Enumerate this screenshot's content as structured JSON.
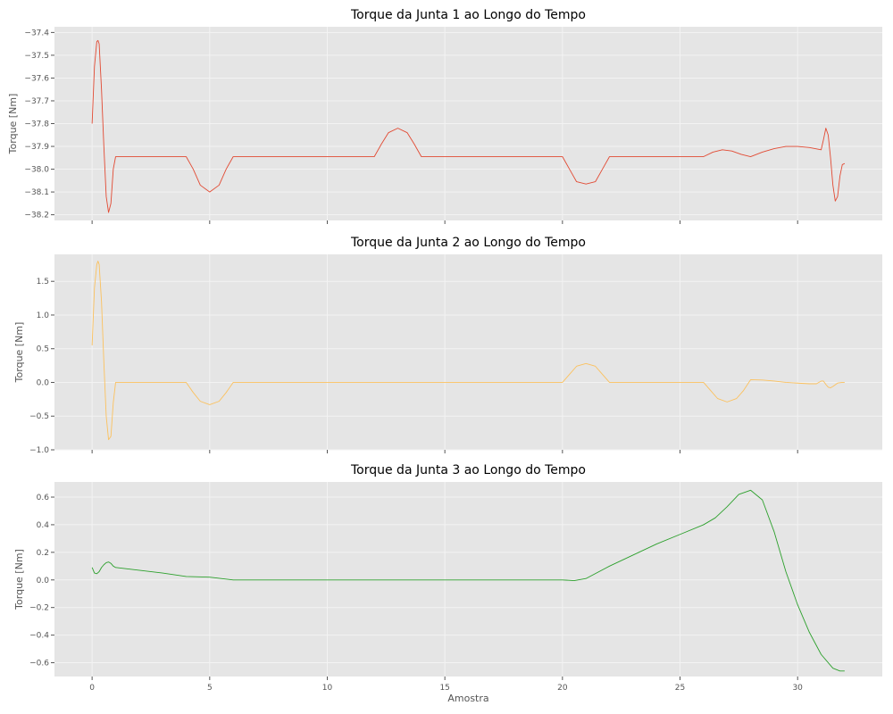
{
  "figure": {
    "xlabel": "Amostra"
  },
  "chart_data": [
    {
      "type": "line",
      "title": "Torque da Junta 1 ao Longo do Tempo",
      "xlabel": "",
      "ylabel": "Torque [Nm]",
      "xlim": [
        -1.6,
        33.6
      ],
      "ylim": [
        -38.225,
        -37.375
      ],
      "xticks": [
        0,
        5,
        10,
        15,
        20,
        25,
        30
      ],
      "yticks": [
        -37.4,
        -37.5,
        -37.6,
        -37.7,
        -37.8,
        -37.9,
        -38.0,
        -38.1,
        -38.2
      ],
      "ytick_labels": [
        "−37.4",
        "−37.5",
        "−37.6",
        "−37.7",
        "−37.8",
        "−37.9",
        "−38.0",
        "−38.1",
        "−38.2"
      ],
      "grid": true,
      "color": "#e24a33",
      "series": [
        {
          "x": [
            0,
            0.1,
            0.2,
            0.25,
            0.3,
            0.4,
            0.5,
            0.6,
            0.7,
            0.8,
            0.9,
            1.0,
            2.0,
            3.0,
            4.0,
            4.3,
            4.6,
            5.0,
            5.4,
            5.7,
            6.0,
            7.0,
            8.0,
            9.0,
            10.0,
            11.0,
            12.0,
            12.3,
            12.6,
            13.0,
            13.4,
            13.7,
            14.0,
            15.0,
            16.0,
            17.0,
            18.0,
            19.0,
            20.0,
            20.3,
            20.6,
            21.0,
            21.4,
            21.7,
            22.0,
            23.0,
            24.0,
            25.0,
            26.0,
            26.4,
            26.8,
            27.2,
            27.6,
            28.0,
            28.5,
            29.0,
            29.5,
            30.0,
            30.5,
            31.0,
            31.1,
            31.2,
            31.3,
            31.4,
            31.5,
            31.6,
            31.7,
            31.8,
            31.9,
            32.0
          ],
          "y": [
            -37.8,
            -37.55,
            -37.44,
            -37.435,
            -37.45,
            -37.65,
            -37.9,
            -38.12,
            -38.19,
            -38.15,
            -38.0,
            -37.945,
            -37.945,
            -37.945,
            -37.945,
            -38.0,
            -38.07,
            -38.1,
            -38.07,
            -38.0,
            -37.945,
            -37.945,
            -37.945,
            -37.945,
            -37.945,
            -37.945,
            -37.945,
            -37.89,
            -37.84,
            -37.82,
            -37.84,
            -37.89,
            -37.945,
            -37.945,
            -37.945,
            -37.945,
            -37.945,
            -37.945,
            -37.945,
            -38.0,
            -38.055,
            -38.065,
            -38.055,
            -38.0,
            -37.945,
            -37.945,
            -37.945,
            -37.945,
            -37.945,
            -37.925,
            -37.915,
            -37.92,
            -37.935,
            -37.945,
            -37.925,
            -37.91,
            -37.9,
            -37.9,
            -37.905,
            -37.915,
            -37.87,
            -37.82,
            -37.85,
            -37.95,
            -38.07,
            -38.14,
            -38.12,
            -38.03,
            -37.98,
            -37.975
          ]
        }
      ]
    },
    {
      "type": "line",
      "title": "Torque da Junta 2 ao Longo do Tempo",
      "xlabel": "",
      "ylabel": "Torque [Nm]",
      "xlim": [
        -1.6,
        33.6
      ],
      "ylim": [
        -1.0,
        1.9
      ],
      "xticks": [
        0,
        5,
        10,
        15,
        20,
        25,
        30
      ],
      "yticks": [
        1.5,
        1.0,
        0.5,
        0.0,
        -0.5,
        -1.0
      ],
      "ytick_labels": [
        "1.5",
        "1.0",
        "0.5",
        "0.0",
        "−0.5",
        "−1.0"
      ],
      "grid": true,
      "color": "#fbc15e",
      "series": [
        {
          "x": [
            0,
            0.1,
            0.2,
            0.25,
            0.3,
            0.4,
            0.5,
            0.6,
            0.7,
            0.8,
            0.9,
            1.0,
            2.0,
            3.0,
            4.0,
            4.3,
            4.6,
            5.0,
            5.4,
            5.7,
            6.0,
            7.0,
            8.0,
            9.0,
            10.0,
            11.0,
            12.0,
            13.0,
            14.0,
            15.0,
            16.0,
            17.0,
            18.0,
            19.0,
            20.0,
            20.3,
            20.6,
            21.0,
            21.4,
            21.7,
            22.0,
            23.0,
            24.0,
            25.0,
            26.0,
            26.3,
            26.6,
            27.0,
            27.4,
            27.7,
            28.0,
            28.5,
            29.0,
            29.5,
            30.0,
            30.5,
            30.8,
            31.0,
            31.1,
            31.2,
            31.3,
            31.4,
            31.5,
            31.7,
            31.9,
            32.0
          ],
          "y": [
            0.55,
            1.4,
            1.75,
            1.8,
            1.75,
            1.2,
            0.3,
            -0.5,
            -0.85,
            -0.8,
            -0.3,
            0.0,
            0.0,
            0.0,
            0.0,
            -0.15,
            -0.28,
            -0.33,
            -0.28,
            -0.15,
            0.0,
            0.0,
            0.0,
            0.0,
            0.0,
            0.0,
            0.0,
            0.0,
            0.0,
            0.0,
            0.0,
            0.0,
            0.0,
            0.0,
            0.0,
            0.12,
            0.24,
            0.28,
            0.24,
            0.12,
            0.0,
            0.0,
            0.0,
            0.0,
            0.0,
            -0.12,
            -0.24,
            -0.29,
            -0.24,
            -0.12,
            0.04,
            0.035,
            0.02,
            0.0,
            -0.01,
            -0.02,
            -0.02,
            0.02,
            0.02,
            -0.03,
            -0.07,
            -0.08,
            -0.06,
            -0.01,
            0.0,
            0.0
          ]
        }
      ]
    },
    {
      "type": "line",
      "title": "Torque da Junta 3 ao Longo do Tempo",
      "xlabel": "Amostra",
      "ylabel": "Torque [Nm]",
      "xlim": [
        -1.6,
        33.6
      ],
      "ylim": [
        -0.7,
        0.71
      ],
      "xticks": [
        0,
        5,
        10,
        15,
        20,
        25,
        30
      ],
      "yticks": [
        0.6,
        0.4,
        0.2,
        0.0,
        -0.2,
        -0.4,
        -0.6
      ],
      "ytick_labels": [
        "0.6",
        "0.4",
        "0.2",
        "0.0",
        "−0.2",
        "−0.4",
        "−0.6"
      ],
      "grid": true,
      "color": "#2ca02c",
      "series": [
        {
          "x": [
            0,
            0.1,
            0.2,
            0.3,
            0.4,
            0.5,
            0.6,
            0.7,
            0.8,
            0.9,
            1.0,
            2.0,
            3.0,
            4.0,
            5.0,
            6.0,
            8.0,
            10.0,
            12.0,
            14.0,
            16.0,
            18.0,
            20.0,
            20.5,
            21.0,
            22.0,
            23.0,
            24.0,
            25.0,
            26.0,
            26.5,
            27.0,
            27.5,
            28.0,
            28.5,
            29.0,
            29.5,
            30.0,
            30.5,
            31.0,
            31.5,
            31.8,
            32.0
          ],
          "y": [
            0.09,
            0.05,
            0.045,
            0.06,
            0.09,
            0.11,
            0.125,
            0.13,
            0.12,
            0.1,
            0.09,
            0.07,
            0.05,
            0.025,
            0.02,
            0.0,
            0.0,
            0.0,
            0.0,
            0.0,
            0.0,
            0.0,
            0.0,
            -0.005,
            0.01,
            0.1,
            0.18,
            0.26,
            0.33,
            0.4,
            0.45,
            0.53,
            0.62,
            0.65,
            0.58,
            0.35,
            0.06,
            -0.18,
            -0.38,
            -0.54,
            -0.64,
            -0.66,
            -0.66
          ]
        }
      ]
    }
  ]
}
